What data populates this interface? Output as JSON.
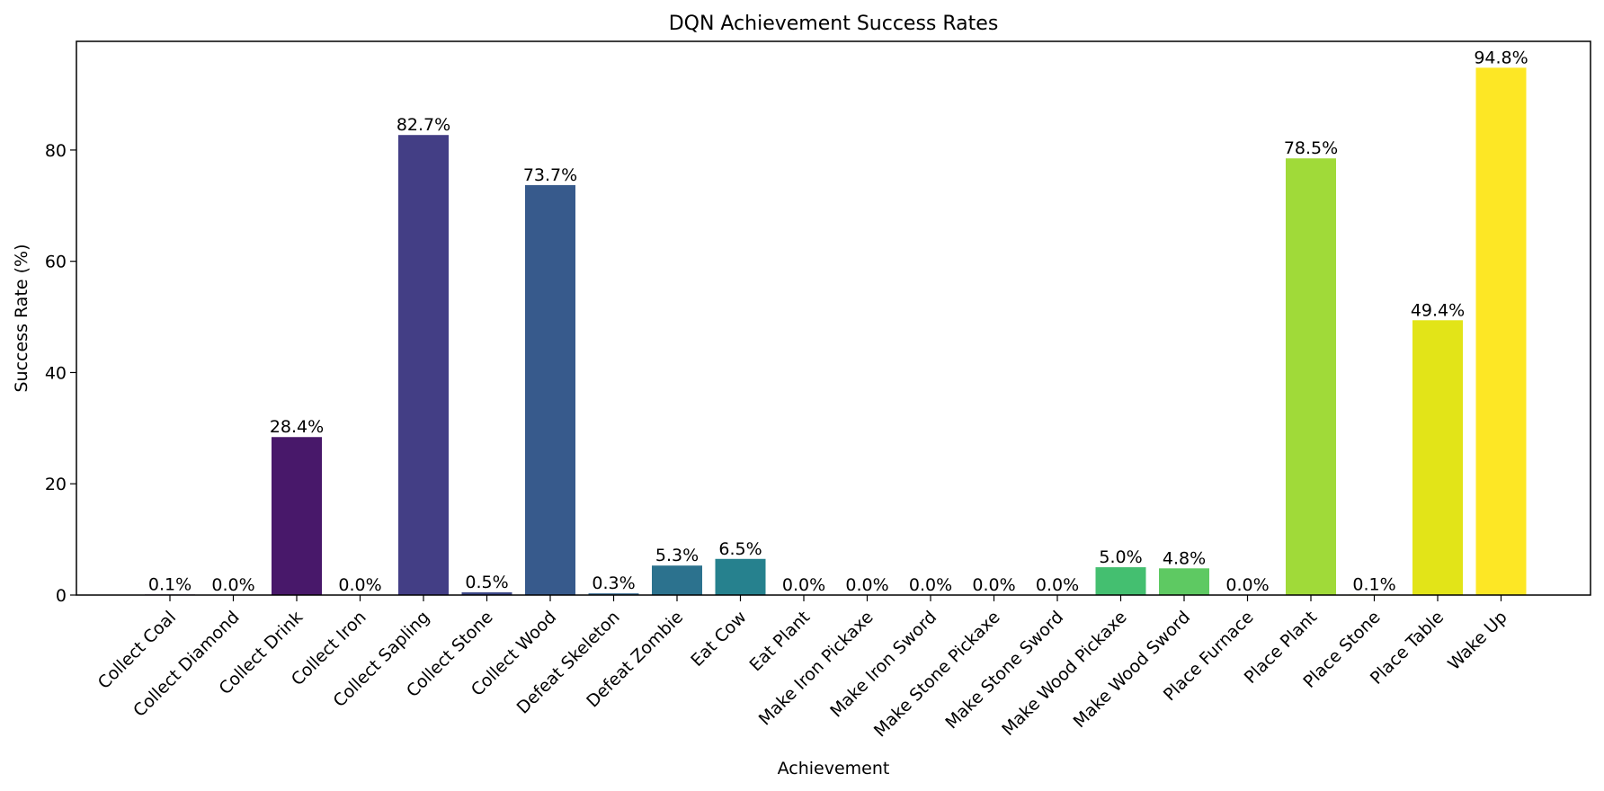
{
  "chart_data": {
    "type": "bar",
    "title": "DQN Achievement Success Rates",
    "xlabel": "Achievement",
    "ylabel": "Success Rate (%)",
    "ylim": [
      0,
      99.54
    ],
    "yticks": [
      0,
      20,
      40,
      60,
      80
    ],
    "grid": false,
    "legend": "none",
    "value_label_suffix": "%",
    "categories": [
      "Collect Coal",
      "Collect Diamond",
      "Collect Drink",
      "Collect Iron",
      "Collect Sapling",
      "Collect Stone",
      "Collect Wood",
      "Defeat Skeleton",
      "Defeat Zombie",
      "Eat Cow",
      "Eat Plant",
      "Make Iron Pickaxe",
      "Make Iron Sword",
      "Make Stone Pickaxe",
      "Make Stone Sword",
      "Make Wood Pickaxe",
      "Make Wood Sword",
      "Place Furnace",
      "Place Plant",
      "Place Stone",
      "Place Table",
      "Wake Up"
    ],
    "values": [
      0.1,
      0.0,
      28.4,
      0.0,
      82.7,
      0.5,
      73.7,
      0.3,
      5.3,
      6.5,
      0.0,
      0.0,
      0.0,
      0.0,
      0.0,
      5.0,
      4.8,
      0.0,
      78.5,
      0.1,
      49.4,
      94.8
    ],
    "colors": [
      "#440154",
      "#46085c",
      "#48186a",
      "#472a7a",
      "#433e85",
      "#3e4989",
      "#375a8c",
      "#31678e",
      "#2c728e",
      "#26818e",
      "#228c8d",
      "#1f9a8a",
      "#1fa088",
      "#24aa83",
      "#2fb47c",
      "#44bf70",
      "#5ec962",
      "#7ad151",
      "#a0da39",
      "#c2df23",
      "#e2e418",
      "#fde725"
    ]
  }
}
